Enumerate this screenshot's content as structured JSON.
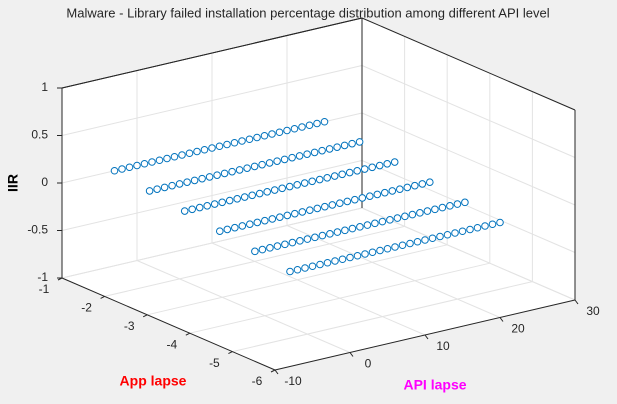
{
  "chart_data": {
    "type": "scatter3d",
    "title": "Malware - Library failed installation percentage distribution among different API level",
    "x_label": "API lapse",
    "y_label": "App lapse",
    "z_label": "IIR",
    "x_label_color": "#ff00ff",
    "y_label_color": "#ff0000",
    "xlim": [
      -10,
      30
    ],
    "ylim": [
      -6,
      -1
    ],
    "zlim": [
      -1,
      1
    ],
    "xticks": [
      -10,
      0,
      10,
      20,
      30
    ],
    "yticks": [
      -1,
      -2,
      -3,
      -4,
      -5,
      -6
    ],
    "zticks": [
      -1,
      -0.5,
      0,
      0.5,
      1
    ],
    "grid": true,
    "marker_color": "#0072bd",
    "series": [
      {
        "y": -1,
        "x": [
          -3,
          -2,
          -1,
          0,
          1,
          2,
          3,
          4,
          5,
          6,
          7,
          8,
          9,
          10,
          11,
          12,
          13,
          14,
          15,
          16,
          17,
          18,
          19,
          20,
          21,
          22,
          23,
          24,
          25
        ],
        "values": [
          0,
          0,
          0,
          0,
          0,
          0,
          0,
          0,
          0,
          0,
          0,
          0,
          0,
          0,
          0,
          0,
          0,
          0,
          0,
          0,
          0,
          0,
          0,
          0,
          0,
          0,
          0,
          0,
          0
        ]
      },
      {
        "y": -2,
        "x": [
          -4,
          -3,
          -2,
          -1,
          0,
          1,
          2,
          3,
          4,
          5,
          6,
          7,
          8,
          9,
          10,
          11,
          12,
          13,
          14,
          15,
          16,
          17,
          18,
          19,
          20,
          21,
          22,
          23,
          24
        ],
        "values": [
          0,
          0,
          0,
          0,
          0,
          0,
          0,
          0,
          0,
          0,
          0,
          0,
          0,
          0,
          0,
          0,
          0,
          0,
          0,
          0,
          0,
          0,
          0,
          0,
          0,
          0,
          0,
          0,
          0
        ]
      },
      {
        "y": -3,
        "x": [
          -5,
          -4,
          -3,
          -2,
          -1,
          0,
          1,
          2,
          3,
          4,
          5,
          6,
          7,
          8,
          9,
          10,
          11,
          12,
          13,
          14,
          15,
          16,
          17,
          18,
          19,
          20,
          21,
          22,
          23
        ],
        "values": [
          0,
          0,
          0,
          0,
          0,
          0,
          0,
          0,
          0,
          0,
          0,
          0,
          0,
          0,
          0,
          0,
          0,
          0,
          0,
          0,
          0,
          0,
          0,
          0,
          0,
          0,
          0,
          0,
          0
        ]
      },
      {
        "y": -4,
        "x": [
          -6,
          -5,
          -4,
          -3,
          -2,
          -1,
          0,
          1,
          2,
          3,
          4,
          5,
          6,
          7,
          8,
          9,
          10,
          11,
          12,
          13,
          14,
          15,
          16,
          17,
          18,
          19,
          20,
          21,
          22
        ],
        "values": [
          0,
          0,
          0,
          0,
          0,
          0,
          0,
          0,
          0,
          0,
          0,
          0,
          0,
          0,
          0,
          0,
          0,
          0,
          0,
          0,
          0,
          0,
          0,
          0,
          0,
          0,
          0,
          0,
          0
        ]
      },
      {
        "y": -5,
        "x": [
          -7,
          -6,
          -5,
          -4,
          -3,
          -2,
          -1,
          0,
          1,
          2,
          3,
          4,
          5,
          6,
          7,
          8,
          9,
          10,
          11,
          12,
          13,
          14,
          15,
          16,
          17,
          18,
          19,
          20,
          21
        ],
        "values": [
          0,
          0,
          0,
          0,
          0,
          0,
          0,
          0,
          0,
          0,
          0,
          0,
          0,
          0,
          0,
          0,
          0,
          0,
          0,
          0,
          0,
          0,
          0,
          0,
          0,
          0,
          0,
          0,
          0
        ]
      },
      {
        "y": -6,
        "x": [
          -8,
          -7,
          -6,
          -5,
          -4,
          -3,
          -2,
          -1,
          0,
          1,
          2,
          3,
          4,
          5,
          6,
          7,
          8,
          9,
          10,
          11,
          12,
          13,
          14,
          15,
          16,
          17,
          18,
          19,
          20
        ],
        "values": [
          0,
          0,
          0,
          0,
          0,
          0,
          0,
          0,
          0,
          0,
          0,
          0,
          0,
          0,
          0,
          0,
          0,
          0,
          0,
          0,
          0,
          0,
          0,
          0,
          0,
          0,
          0,
          0,
          0
        ]
      }
    ]
  }
}
